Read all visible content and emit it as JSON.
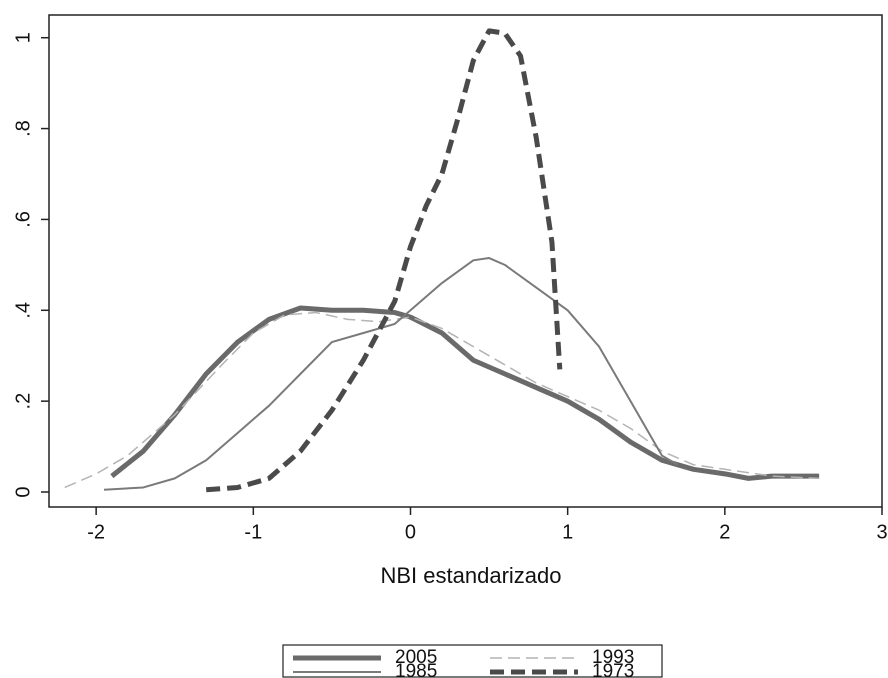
{
  "chart_data": {
    "type": "line",
    "xlabel": "NBI estandarizado",
    "xlim": [
      -2.3,
      3.0
    ],
    "xticks": [
      -2,
      -1,
      0,
      1,
      2,
      3
    ],
    "ylim": [
      -0.033,
      1.05
    ],
    "yticks": [
      0,
      {
        "value": 0.2,
        "label": ".2"
      },
      {
        "value": 0.4,
        "label": ".4"
      },
      {
        "value": 0.6,
        "label": ".6"
      },
      {
        "value": 0.8,
        "label": ".8"
      },
      1
    ],
    "grid": false,
    "legend": "bottom",
    "series": [
      {
        "name": "2005",
        "color": "#6a6a6a",
        "width": 5,
        "dash": false,
        "x": [
          -1.9,
          -1.7,
          -1.5,
          -1.3,
          -1.1,
          -0.9,
          -0.7,
          -0.5,
          -0.3,
          -0.1,
          0,
          0.2,
          0.4,
          0.6,
          0.8,
          1.0,
          1.2,
          1.4,
          1.6,
          1.8,
          2.0,
          2.15,
          2.3,
          2.6
        ],
        "values": [
          0.035,
          0.09,
          0.17,
          0.26,
          0.33,
          0.38,
          0.405,
          0.4,
          0.4,
          0.395,
          0.385,
          0.35,
          0.29,
          0.26,
          0.23,
          0.2,
          0.16,
          0.11,
          0.07,
          0.05,
          0.04,
          0.03,
          0.035,
          0.035
        ]
      },
      {
        "name": "1993",
        "color": "#b4b4b4",
        "width": 1.5,
        "dash": true,
        "x": [
          -2.2,
          -2.0,
          -1.8,
          -1.5,
          -1.2,
          -1.0,
          -0.8,
          -0.6,
          -0.4,
          -0.2,
          0,
          0.2,
          0.4,
          0.6,
          0.8,
          1.0,
          1.2,
          1.4,
          1.6,
          1.8,
          2.0,
          2.3,
          2.6
        ],
        "values": [
          0.01,
          0.04,
          0.08,
          0.17,
          0.28,
          0.35,
          0.39,
          0.395,
          0.38,
          0.375,
          0.385,
          0.36,
          0.32,
          0.28,
          0.24,
          0.21,
          0.18,
          0.14,
          0.09,
          0.06,
          0.05,
          0.035,
          0.03
        ]
      },
      {
        "name": "1985",
        "color": "#7a7a7a",
        "width": 2,
        "dash": false,
        "x": [
          -1.95,
          -1.7,
          -1.5,
          -1.3,
          -1.1,
          -0.9,
          -0.7,
          -0.5,
          -0.3,
          -0.1,
          0,
          0.2,
          0.4,
          0.5,
          0.6,
          0.8,
          1.0,
          1.2,
          1.4,
          1.6,
          1.7
        ],
        "values": [
          0.005,
          0.01,
          0.03,
          0.07,
          0.13,
          0.19,
          0.26,
          0.33,
          0.35,
          0.37,
          0.4,
          0.46,
          0.51,
          0.515,
          0.5,
          0.45,
          0.4,
          0.32,
          0.2,
          0.08,
          0.06
        ]
      },
      {
        "name": "1973",
        "color": "#4a4a4a",
        "width": 5,
        "dash": true,
        "x": [
          -1.3,
          -1.1,
          -0.9,
          -0.7,
          -0.5,
          -0.3,
          -0.1,
          0.0,
          0.1,
          0.2,
          0.3,
          0.4,
          0.5,
          0.6,
          0.7,
          0.8,
          0.9,
          0.95
        ],
        "values": [
          0.005,
          0.01,
          0.03,
          0.09,
          0.18,
          0.29,
          0.42,
          0.54,
          0.63,
          0.7,
          0.82,
          0.95,
          1.015,
          1.01,
          0.96,
          0.78,
          0.55,
          0.27
        ]
      }
    ]
  }
}
